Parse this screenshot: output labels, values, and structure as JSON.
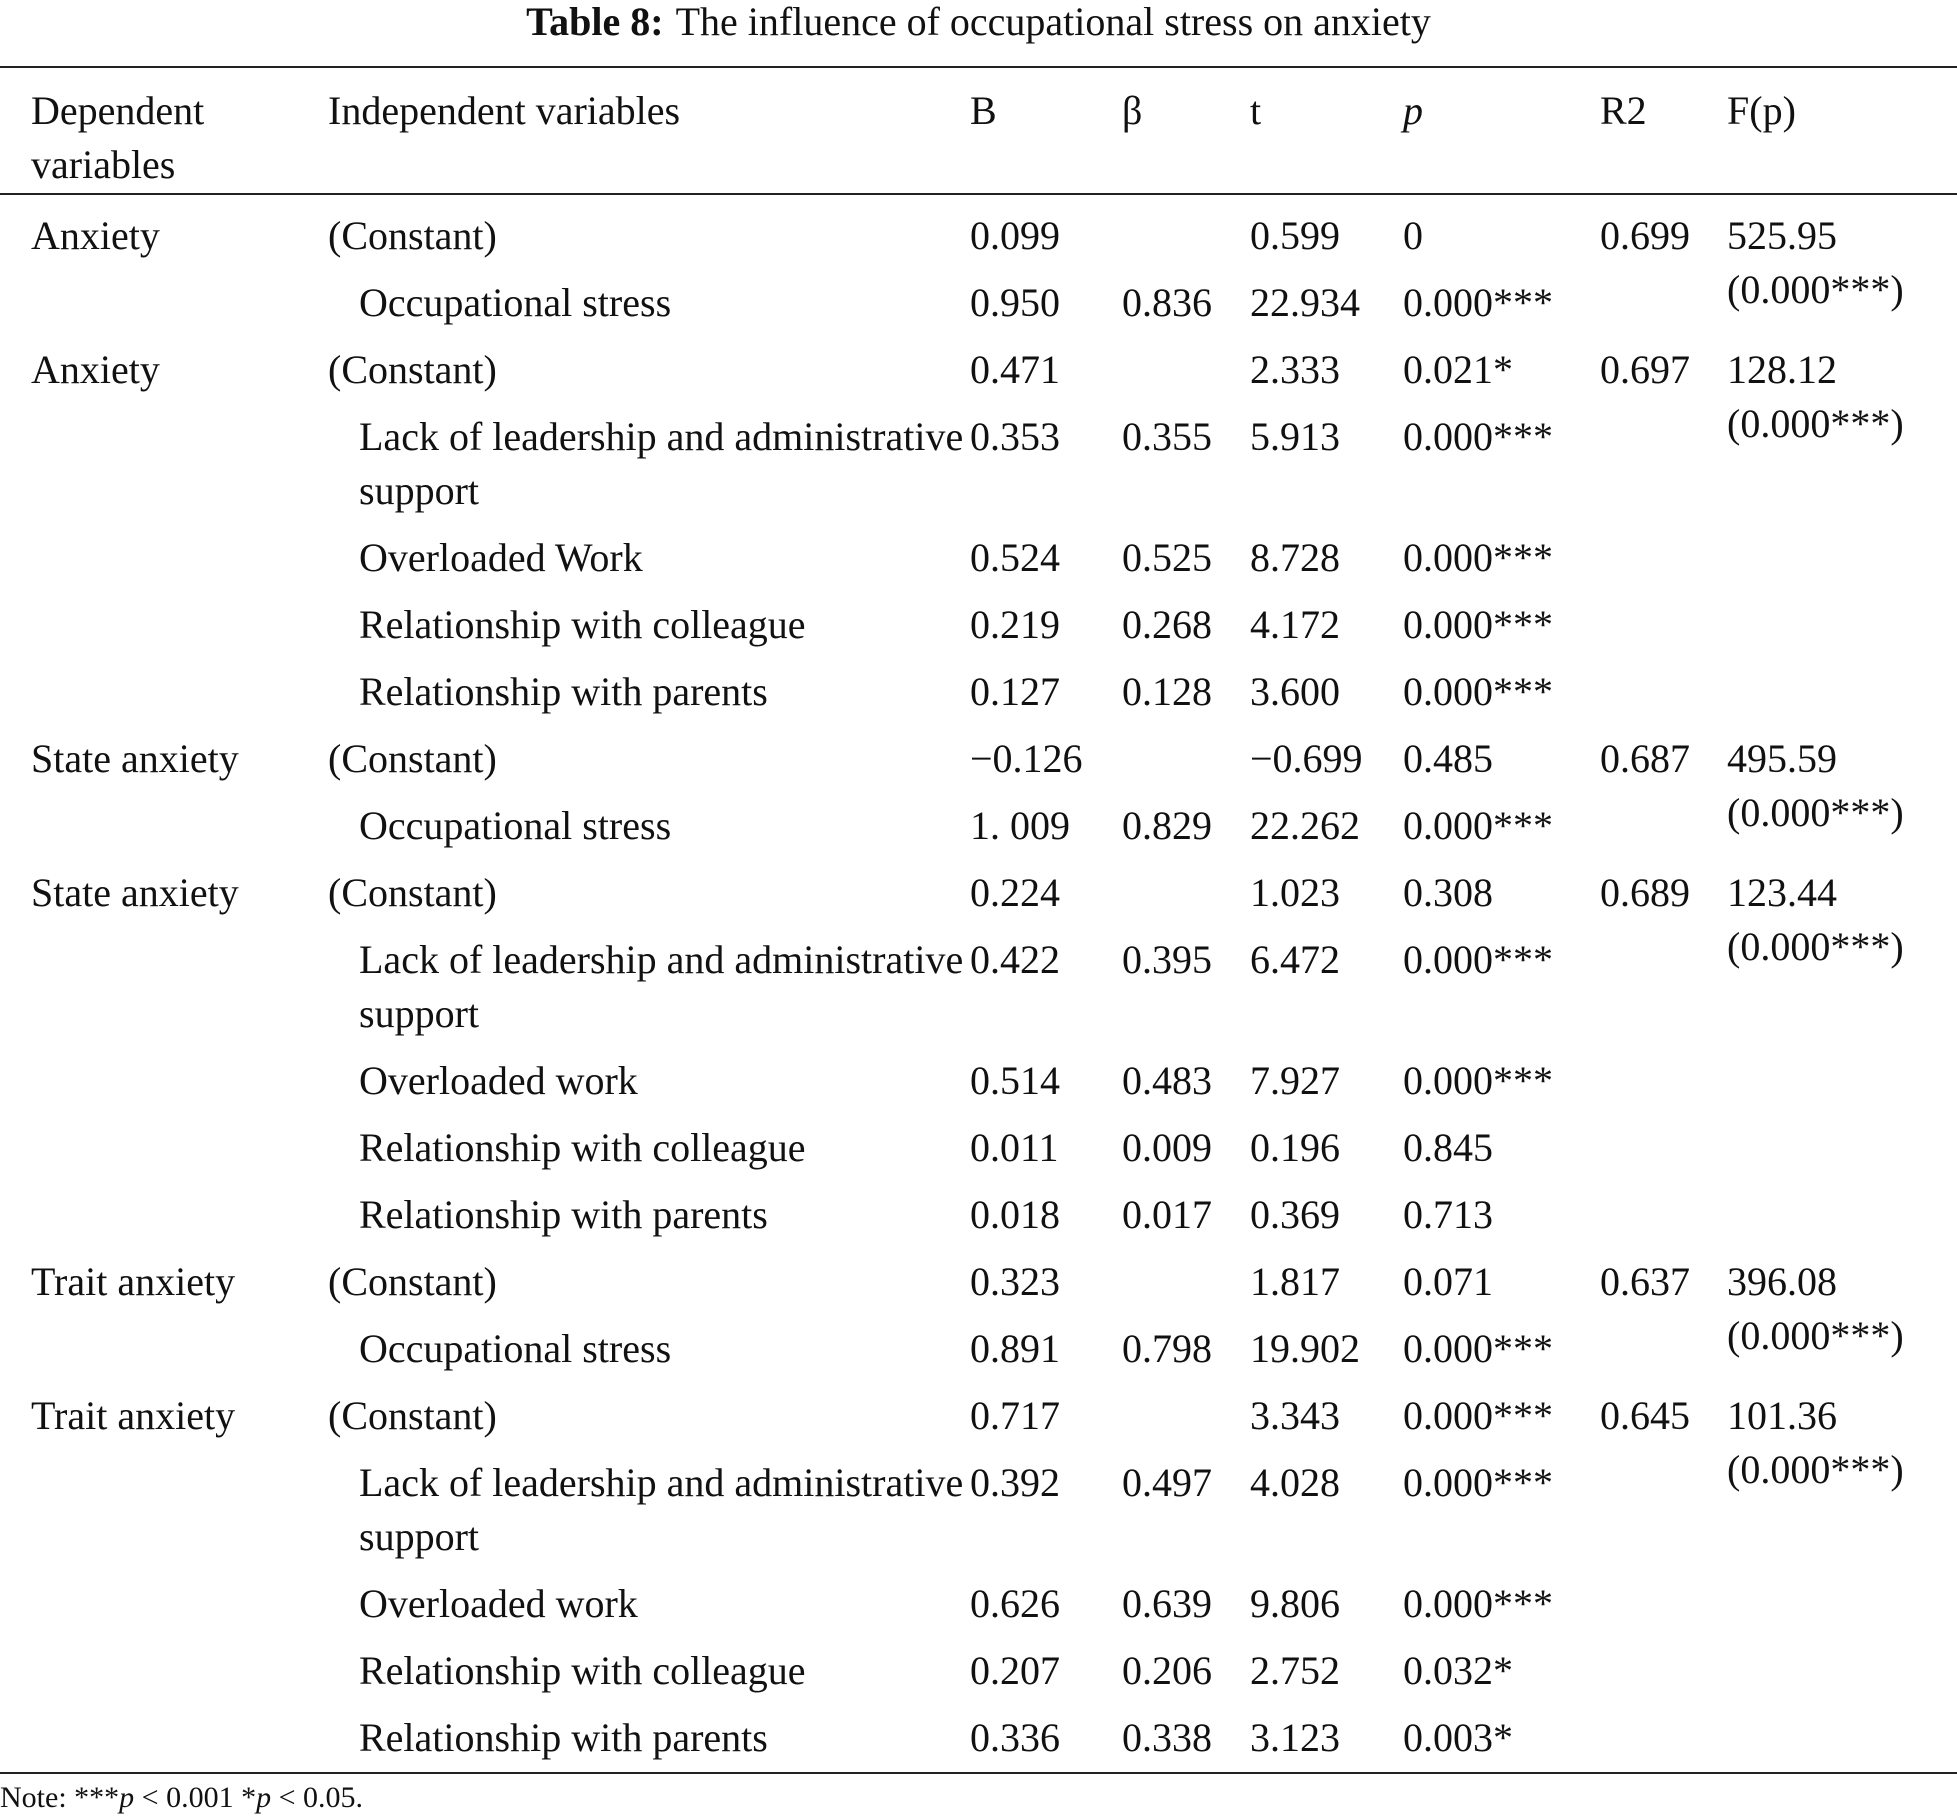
{
  "title": {
    "label": "Table 8:",
    "caption": "The influence of occupational stress on anxiety"
  },
  "table": {
    "headers": [
      "Dependent variables",
      "Independent variables",
      "B",
      "β",
      "t",
      "p",
      "R2",
      "F(p)"
    ],
    "groups": [
      {
        "dependent": "Anxiety",
        "r2": "0.699",
        "f": "525.95 (0.000***)",
        "rows": [
          {
            "independent": "(Constant)",
            "b": "0.099",
            "t": "0.599",
            "p": "0"
          },
          {
            "independent": "Occupational stress",
            "b": "0.950",
            "beta": "0.836",
            "t": "22.934",
            "p": "0.000***"
          }
        ]
      },
      {
        "dependent": "Anxiety",
        "r2": "0.697",
        "f": "128.12 (0.000***)",
        "rows": [
          {
            "independent": "(Constant)",
            "b": "0.471",
            "t": "2.333",
            "p": "0.021*"
          },
          {
            "independent": "Lack of leadership and administrative support",
            "b": "0.353",
            "beta": "0.355",
            "t": "5.913",
            "p": "0.000***"
          },
          {
            "independent": "Overloaded Work",
            "b": "0.524",
            "beta": "0.525",
            "t": "8.728",
            "p": "0.000***"
          },
          {
            "independent": "Relationship with colleague",
            "b": "0.219",
            "beta": "0.268",
            "t": "4.172",
            "p": "0.000***"
          },
          {
            "independent": "Relationship with parents",
            "b": "0.127",
            "beta": "0.128",
            "t": "3.600",
            "p": "0.000***"
          }
        ]
      },
      {
        "dependent": "State anxiety",
        "r2": "0.687",
        "f": "495.59 (0.000***)",
        "rows": [
          {
            "independent": "(Constant)",
            "b": "−0.126",
            "t": "−0.699",
            "p": "0.485"
          },
          {
            "independent": "Occupational stress",
            "b": "1. 009",
            "beta": "0.829",
            "t": "22.262",
            "p": "0.000***"
          }
        ]
      },
      {
        "dependent": "State anxiety",
        "r2": "0.689",
        "f": "123.44 (0.000***)",
        "rows": [
          {
            "independent": "(Constant)",
            "b": "0.224",
            "t": "1.023",
            "p": "0.308"
          },
          {
            "independent": "Lack of leadership and administrative support",
            "b": "0.422",
            "beta": "0.395",
            "t": "6.472",
            "p": "0.000***"
          },
          {
            "independent": "Overloaded work",
            "b": "0.514",
            "beta": "0.483",
            "t": "7.927",
            "p": "0.000***"
          },
          {
            "independent": "Relationship with colleague",
            "b": "0.011",
            "beta": "0.009",
            "t": "0.196",
            "p": "0.845"
          },
          {
            "independent": "Relationship with parents",
            "b": "0.018",
            "beta": "0.017",
            "t": "0.369",
            "p": "0.713"
          }
        ]
      },
      {
        "dependent": "Trait anxiety",
        "r2": "0.637",
        "f": "396.08 (0.000***)",
        "rows": [
          {
            "independent": "(Constant)",
            "b": "0.323",
            "t": "1.817",
            "p": "0.071"
          },
          {
            "independent": "Occupational stress",
            "b": "0.891",
            "beta": "0.798",
            "t": "19.902",
            "p": "0.000***"
          }
        ]
      },
      {
        "dependent": "Trait anxiety",
        "r2": "0.645",
        "f": "101.36 (0.000***)",
        "rows": [
          {
            "independent": "(Constant)",
            "b": "0.717",
            "t": "3.343",
            "p": "0.000***"
          },
          {
            "independent": "Lack of leadership and administrative support",
            "b": "0.392",
            "beta": "0.497",
            "t": "4.028",
            "p": "0.000***"
          },
          {
            "independent": "Overloaded work",
            "b": "0.626",
            "beta": "0.639",
            "t": "9.806",
            "p": "0.000***"
          },
          {
            "independent": "Relationship with colleague",
            "b": "0.207",
            "beta": "0.206",
            "t": "2.752",
            "p": "0.032*"
          },
          {
            "independent": "Relationship with parents",
            "b": "0.336",
            "beta": "0.338",
            "t": "3.123",
            "p": "0.003*"
          }
        ]
      }
    ]
  },
  "note": [
    "Note: ***",
    "p",
    " < 0.001 *",
    "p",
    " < 0.05."
  ]
}
